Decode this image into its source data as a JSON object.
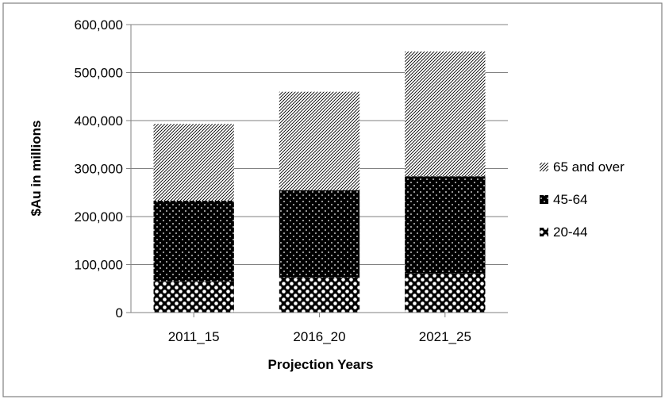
{
  "chart_data": {
    "type": "bar",
    "stacked": true,
    "categories": [
      "2011_15",
      "2016_20",
      "2021_25"
    ],
    "series": [
      {
        "name": "20-44",
        "values": [
          65000,
          73000,
          82000
        ],
        "pattern": "checker"
      },
      {
        "name": "45-64",
        "values": [
          168000,
          182000,
          202000
        ],
        "pattern": "dots"
      },
      {
        "name": "65 and over",
        "values": [
          160000,
          205000,
          260000
        ],
        "pattern": "diagonal"
      }
    ],
    "legend_order": [
      "65 and over",
      "45-64",
      "20-44"
    ],
    "legend_position": "right",
    "xlabel": "Projection Years",
    "ylabel": "$Au in millions",
    "ylim": [
      0,
      600000
    ],
    "yticks": [
      "0",
      "100,000",
      "200,000",
      "300,000",
      "400,000",
      "500,000",
      "600,000"
    ],
    "grid": true,
    "colors": {
      "bar_dark": "#000000",
      "bar_light": "#ffffff",
      "grid": "#808080",
      "border": "#808080"
    }
  }
}
